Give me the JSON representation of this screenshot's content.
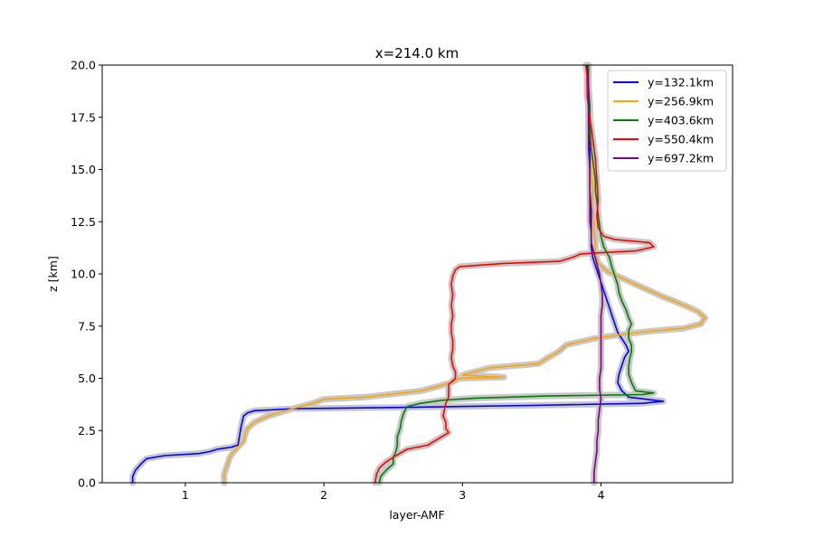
{
  "chart_data": {
    "type": "line",
    "title": "x=214.0 km",
    "xlabel": "layer-AMF",
    "ylabel": "z [km]",
    "xlim": [
      0.4,
      4.95
    ],
    "ylim": [
      0,
      20
    ],
    "xticks": [
      1,
      2,
      3,
      4
    ],
    "xtick_labels": [
      "1",
      "2",
      "3",
      "4"
    ],
    "yticks": [
      0,
      2.5,
      5,
      7.5,
      10,
      12.5,
      15,
      17.5,
      20
    ],
    "ytick_labels": [
      "0.0",
      "2.5",
      "5.0",
      "7.5",
      "10.0",
      "12.5",
      "15.0",
      "17.5",
      "20.0"
    ],
    "grid": false,
    "legend_position": "top-right",
    "uncertainty_band_color": "#c8c8c8",
    "series": [
      {
        "name": "y=132.1km",
        "color": "#0000ff",
        "points": [
          [
            0.62,
            0
          ],
          [
            0.62,
            0.3
          ],
          [
            0.64,
            0.6
          ],
          [
            0.68,
            0.9
          ],
          [
            0.72,
            1.15
          ],
          [
            0.85,
            1.3
          ],
          [
            1.1,
            1.4
          ],
          [
            1.18,
            1.5
          ],
          [
            1.23,
            1.6
          ],
          [
            1.33,
            1.7
          ],
          [
            1.38,
            1.8
          ],
          [
            1.39,
            2.2
          ],
          [
            1.4,
            2.6
          ],
          [
            1.41,
            2.9
          ],
          [
            1.42,
            3.2
          ],
          [
            1.45,
            3.35
          ],
          [
            1.5,
            3.45
          ],
          [
            1.8,
            3.55
          ],
          [
            2.5,
            3.6
          ],
          [
            3.5,
            3.7
          ],
          [
            4.3,
            3.8
          ],
          [
            4.45,
            3.9
          ],
          [
            4.2,
            4.1
          ],
          [
            4.15,
            4.4
          ],
          [
            4.12,
            4.8
          ],
          [
            4.13,
            5.2
          ],
          [
            4.15,
            5.6
          ],
          [
            4.17,
            6.0
          ],
          [
            4.2,
            6.3
          ],
          [
            4.18,
            6.6
          ],
          [
            4.15,
            6.9
          ],
          [
            4.12,
            7.2
          ],
          [
            4.1,
            7.6
          ],
          [
            4.08,
            8.0
          ],
          [
            4.06,
            8.4
          ],
          [
            4.04,
            8.8
          ],
          [
            4.02,
            9.2
          ],
          [
            4.0,
            9.6
          ],
          [
            3.98,
            10.0
          ],
          [
            3.96,
            10.4
          ],
          [
            3.94,
            10.8
          ],
          [
            3.93,
            11.3
          ],
          [
            3.93,
            12.0
          ],
          [
            3.93,
            13.0
          ],
          [
            3.92,
            14.0
          ],
          [
            3.92,
            15.0
          ],
          [
            3.92,
            16.0
          ],
          [
            3.91,
            17.0
          ],
          [
            3.91,
            18.0
          ],
          [
            3.9,
            19.0
          ],
          [
            3.9,
            20.0
          ]
        ]
      },
      {
        "name": "y=256.9km",
        "color": "#ffa500",
        "points": [
          [
            1.28,
            0
          ],
          [
            1.28,
            0.4
          ],
          [
            1.3,
            0.8
          ],
          [
            1.32,
            1.2
          ],
          [
            1.35,
            1.5
          ],
          [
            1.38,
            1.7
          ],
          [
            1.42,
            2.0
          ],
          [
            1.43,
            2.3
          ],
          [
            1.45,
            2.6
          ],
          [
            1.5,
            2.9
          ],
          [
            1.6,
            3.2
          ],
          [
            1.75,
            3.5
          ],
          [
            1.92,
            3.8
          ],
          [
            2.0,
            4.0
          ],
          [
            2.3,
            4.1
          ],
          [
            2.5,
            4.25
          ],
          [
            2.7,
            4.4
          ],
          [
            2.82,
            4.6
          ],
          [
            2.92,
            4.8
          ],
          [
            2.98,
            5.0
          ],
          [
            3.3,
            5.05
          ],
          [
            3.0,
            5.15
          ],
          [
            3.08,
            5.3
          ],
          [
            3.2,
            5.5
          ],
          [
            3.55,
            5.7
          ],
          [
            3.62,
            6.0
          ],
          [
            3.7,
            6.3
          ],
          [
            3.75,
            6.6
          ],
          [
            3.95,
            6.9
          ],
          [
            4.15,
            7.1
          ],
          [
            4.35,
            7.25
          ],
          [
            4.6,
            7.4
          ],
          [
            4.72,
            7.6
          ],
          [
            4.75,
            7.9
          ],
          [
            4.7,
            8.2
          ],
          [
            4.6,
            8.5
          ],
          [
            4.45,
            8.9
          ],
          [
            4.35,
            9.2
          ],
          [
            4.25,
            9.5
          ],
          [
            4.15,
            9.8
          ],
          [
            4.05,
            10.1
          ],
          [
            3.98,
            10.5
          ],
          [
            3.96,
            11.0
          ],
          [
            3.96,
            11.5
          ],
          [
            3.95,
            12.0
          ],
          [
            3.95,
            12.5
          ],
          [
            3.94,
            13.0
          ],
          [
            3.94,
            14.0
          ],
          [
            3.93,
            15.0
          ],
          [
            3.93,
            16.0
          ],
          [
            3.92,
            17.0
          ],
          [
            3.92,
            18.0
          ],
          [
            3.91,
            19.0
          ],
          [
            3.91,
            20.0
          ]
        ]
      },
      {
        "name": "y=403.6km",
        "color": "#008000",
        "points": [
          [
            2.4,
            0
          ],
          [
            2.41,
            0.3
          ],
          [
            2.45,
            0.6
          ],
          [
            2.5,
            0.9
          ],
          [
            2.5,
            1.2
          ],
          [
            2.52,
            1.5
          ],
          [
            2.53,
            1.8
          ],
          [
            2.53,
            2.2
          ],
          [
            2.55,
            2.6
          ],
          [
            2.56,
            3.0
          ],
          [
            2.58,
            3.4
          ],
          [
            2.6,
            3.65
          ],
          [
            2.7,
            3.8
          ],
          [
            2.85,
            3.95
          ],
          [
            3.1,
            4.05
          ],
          [
            3.6,
            4.15
          ],
          [
            4.3,
            4.22
          ],
          [
            4.38,
            4.3
          ],
          [
            4.25,
            4.4
          ],
          [
            4.22,
            4.8
          ],
          [
            4.2,
            5.2
          ],
          [
            4.2,
            5.6
          ],
          [
            4.21,
            6.0
          ],
          [
            4.22,
            6.3
          ],
          [
            4.22,
            6.6
          ],
          [
            4.2,
            6.9
          ],
          [
            4.2,
            7.3
          ],
          [
            4.22,
            7.6
          ],
          [
            4.2,
            7.9
          ],
          [
            4.18,
            8.3
          ],
          [
            4.15,
            8.7
          ],
          [
            4.13,
            9.1
          ],
          [
            4.12,
            9.5
          ],
          [
            4.1,
            9.9
          ],
          [
            4.08,
            10.3
          ],
          [
            4.06,
            10.8
          ],
          [
            4.02,
            11.3
          ],
          [
            4.0,
            11.8
          ],
          [
            3.99,
            12.3
          ],
          [
            3.98,
            12.8
          ],
          [
            3.97,
            13.5
          ],
          [
            3.96,
            14.0
          ],
          [
            3.96,
            14.5
          ],
          [
            3.95,
            15.0
          ],
          [
            3.94,
            15.5
          ],
          [
            3.93,
            16.0
          ],
          [
            3.92,
            17.0
          ],
          [
            3.92,
            18.0
          ],
          [
            3.91,
            19.0
          ],
          [
            3.91,
            20.0
          ]
        ]
      },
      {
        "name": "y=550.4km",
        "color": "#ff0000",
        "points": [
          [
            2.37,
            0
          ],
          [
            2.38,
            0.4
          ],
          [
            2.4,
            0.7
          ],
          [
            2.45,
            1.0
          ],
          [
            2.52,
            1.3
          ],
          [
            2.6,
            1.6
          ],
          [
            2.75,
            1.8
          ],
          [
            2.8,
            2.0
          ],
          [
            2.85,
            2.2
          ],
          [
            2.9,
            2.4
          ],
          [
            2.88,
            2.6
          ],
          [
            2.88,
            2.9
          ],
          [
            2.86,
            3.2
          ],
          [
            2.87,
            3.5
          ],
          [
            2.88,
            3.8
          ],
          [
            2.9,
            4.1
          ],
          [
            2.9,
            4.4
          ],
          [
            2.9,
            4.7
          ],
          [
            2.95,
            5.0
          ],
          [
            2.95,
            5.3
          ],
          [
            2.93,
            5.6
          ],
          [
            2.92,
            6.0
          ],
          [
            2.93,
            6.4
          ],
          [
            2.93,
            6.8
          ],
          [
            2.92,
            7.2
          ],
          [
            2.92,
            7.6
          ],
          [
            2.93,
            8.0
          ],
          [
            2.92,
            8.5
          ],
          [
            2.93,
            9.0
          ],
          [
            2.92,
            9.5
          ],
          [
            2.93,
            9.9
          ],
          [
            2.95,
            10.2
          ],
          [
            2.98,
            10.35
          ],
          [
            3.3,
            10.5
          ],
          [
            3.7,
            10.6
          ],
          [
            3.8,
            10.8
          ],
          [
            3.85,
            10.95
          ],
          [
            3.95,
            11.0
          ],
          [
            4.25,
            11.1
          ],
          [
            4.38,
            11.3
          ],
          [
            4.35,
            11.5
          ],
          [
            4.1,
            11.65
          ],
          [
            4.02,
            11.8
          ],
          [
            3.98,
            12.2
          ],
          [
            3.97,
            12.8
          ],
          [
            3.98,
            13.5
          ],
          [
            3.97,
            14.5
          ],
          [
            3.96,
            15.5
          ],
          [
            3.94,
            16.5
          ],
          [
            3.93,
            17.0
          ],
          [
            3.92,
            17.5
          ],
          [
            3.9,
            18.5
          ],
          [
            3.9,
            19.5
          ],
          [
            3.89,
            20.0
          ]
        ]
      },
      {
        "name": "y=697.2km",
        "color": "#800080",
        "points": [
          [
            3.95,
            0
          ],
          [
            3.95,
            0.5
          ],
          [
            3.96,
            1.0
          ],
          [
            3.97,
            1.5
          ],
          [
            3.97,
            2.0
          ],
          [
            3.98,
            2.5
          ],
          [
            3.98,
            3.0
          ],
          [
            3.99,
            3.5
          ],
          [
            4.0,
            4.0
          ],
          [
            3.99,
            4.5
          ],
          [
            3.99,
            5.0
          ],
          [
            4.0,
            5.5
          ],
          [
            4.0,
            6.0
          ],
          [
            4.0,
            6.5
          ],
          [
            4.0,
            7.0
          ],
          [
            4.0,
            7.5
          ],
          [
            4.0,
            8.0
          ],
          [
            4.01,
            8.5
          ],
          [
            4.01,
            9.0
          ],
          [
            4.0,
            9.5
          ],
          [
            3.99,
            10.0
          ],
          [
            3.97,
            10.5
          ],
          [
            3.95,
            11.0
          ],
          [
            3.93,
            11.5
          ],
          [
            3.93,
            12.0
          ],
          [
            3.92,
            12.5
          ],
          [
            3.92,
            13.0
          ],
          [
            3.92,
            14.0
          ],
          [
            3.92,
            15.0
          ],
          [
            3.91,
            16.0
          ],
          [
            3.91,
            17.0
          ],
          [
            3.91,
            18.0
          ],
          [
            3.91,
            19.0
          ],
          [
            3.9,
            20.0
          ]
        ]
      }
    ]
  }
}
